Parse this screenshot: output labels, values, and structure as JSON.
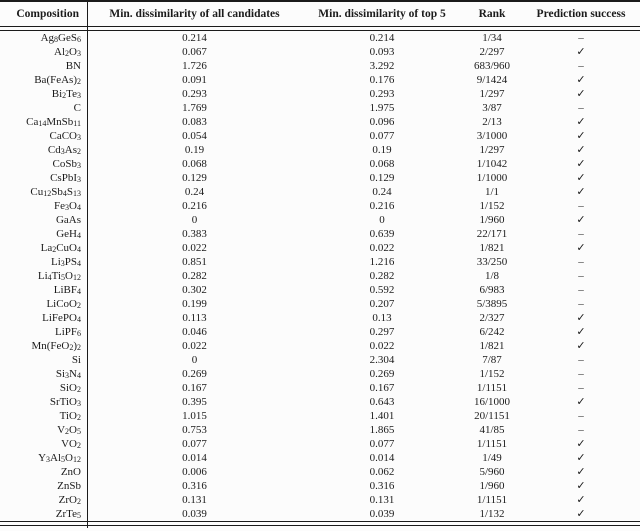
{
  "table": {
    "headers": [
      "Composition",
      "Min. dissimilarity of all candidates",
      "Min. dissimilarity of top 5",
      "Rank",
      "Prediction success"
    ],
    "success_glyphs": {
      "yes": "✓",
      "no": "–"
    },
    "rows": [
      {
        "composition": "Ag_{8}GeS_{6}",
        "min_all": "0.214",
        "min_top5": "0.214",
        "rank": "1/34",
        "success": "–"
      },
      {
        "composition": "Al_{2}O_{3}",
        "min_all": "0.067",
        "min_top5": "0.093",
        "rank": "2/297",
        "success": "✓"
      },
      {
        "composition": "BN",
        "min_all": "1.726",
        "min_top5": "3.292",
        "rank": "683/960",
        "success": "–"
      },
      {
        "composition": "Ba(FeAs)_{2}",
        "min_all": "0.091",
        "min_top5": "0.176",
        "rank": "9/1424",
        "success": "✓"
      },
      {
        "composition": "Bi_{2}Te_{3}",
        "min_all": "0.293",
        "min_top5": "0.293",
        "rank": "1/297",
        "success": "✓"
      },
      {
        "composition": "C",
        "min_all": "1.769",
        "min_top5": "1.975",
        "rank": "3/87",
        "success": "–"
      },
      {
        "composition": "Ca_{14}MnSb_{11}",
        "min_all": "0.083",
        "min_top5": "0.096",
        "rank": "2/13",
        "success": "✓"
      },
      {
        "composition": "CaCO_{3}",
        "min_all": "0.054",
        "min_top5": "0.077",
        "rank": "3/1000",
        "success": "✓"
      },
      {
        "composition": "Cd_{3}As_{2}",
        "min_all": "0.19",
        "min_top5": "0.19",
        "rank": "1/297",
        "success": "✓"
      },
      {
        "composition": "CoSb_{3}",
        "min_all": "0.068",
        "min_top5": "0.068",
        "rank": "1/1042",
        "success": "✓"
      },
      {
        "composition": "CsPbI_{3}",
        "min_all": "0.129",
        "min_top5": "0.129",
        "rank": "1/1000",
        "success": "✓"
      },
      {
        "composition": "Cu_{12}Sb_{4}S_{13}",
        "min_all": "0.24",
        "min_top5": "0.24",
        "rank": "1/1",
        "success": "✓"
      },
      {
        "composition": "Fe_{3}O_{4}",
        "min_all": "0.216",
        "min_top5": "0.216",
        "rank": "1/152",
        "success": "–"
      },
      {
        "composition": "GaAs",
        "min_all": "0",
        "min_top5": "0",
        "rank": "1/960",
        "success": "✓"
      },
      {
        "composition": "GeH_{4}",
        "min_all": "0.383",
        "min_top5": "0.639",
        "rank": "22/171",
        "success": "–"
      },
      {
        "composition": "La_{2}CuO_{4}",
        "min_all": "0.022",
        "min_top5": "0.022",
        "rank": "1/821",
        "success": "✓"
      },
      {
        "composition": "Li_{3}PS_{4}",
        "min_all": "0.851",
        "min_top5": "1.216",
        "rank": "33/250",
        "success": "–"
      },
      {
        "composition": "Li_{4}Ti_{5}O_{12}",
        "min_all": "0.282",
        "min_top5": "0.282",
        "rank": "1/8",
        "success": "–"
      },
      {
        "composition": "LiBF_{4}",
        "min_all": "0.302",
        "min_top5": "0.592",
        "rank": "6/983",
        "success": "–"
      },
      {
        "composition": "LiCoO_{2}",
        "min_all": "0.199",
        "min_top5": "0.207",
        "rank": "5/3895",
        "success": "–"
      },
      {
        "composition": "LiFePO_{4}",
        "min_all": "0.113",
        "min_top5": "0.13",
        "rank": "2/327",
        "success": "✓"
      },
      {
        "composition": "LiPF_{6}",
        "min_all": "0.046",
        "min_top5": "0.297",
        "rank": "6/242",
        "success": "✓"
      },
      {
        "composition": "Mn(FeO_{2})_{2}",
        "min_all": "0.022",
        "min_top5": "0.022",
        "rank": "1/821",
        "success": "✓"
      },
      {
        "composition": "Si",
        "min_all": "0",
        "min_top5": "2.304",
        "rank": "7/87",
        "success": "–"
      },
      {
        "composition": "Si_{3}N_{4}",
        "min_all": "0.269",
        "min_top5": "0.269",
        "rank": "1/152",
        "success": "–"
      },
      {
        "composition": "SiO_{2}",
        "min_all": "0.167",
        "min_top5": "0.167",
        "rank": "1/1151",
        "success": "–"
      },
      {
        "composition": "SrTiO_{3}",
        "min_all": "0.395",
        "min_top5": "0.643",
        "rank": "16/1000",
        "success": "✓"
      },
      {
        "composition": "TiO_{2}",
        "min_all": "1.015",
        "min_top5": "1.401",
        "rank": "20/1151",
        "success": "–"
      },
      {
        "composition": "V_{2}O_{5}",
        "min_all": "0.753",
        "min_top5": "1.865",
        "rank": "41/85",
        "success": "–"
      },
      {
        "composition": "VO_{2}",
        "min_all": "0.077",
        "min_top5": "0.077",
        "rank": "1/1151",
        "success": "✓"
      },
      {
        "composition": "Y_{3}Al_{5}O_{12}",
        "min_all": "0.014",
        "min_top5": "0.014",
        "rank": "1/49",
        "success": "✓"
      },
      {
        "composition": "ZnO",
        "min_all": "0.006",
        "min_top5": "0.062",
        "rank": "5/960",
        "success": "✓"
      },
      {
        "composition": "ZnSb",
        "min_all": "0.316",
        "min_top5": "0.316",
        "rank": "1/960",
        "success": "✓"
      },
      {
        "composition": "ZrO_{2}",
        "min_all": "0.131",
        "min_top5": "0.131",
        "rank": "1/1151",
        "success": "✓"
      },
      {
        "composition": "ZrTe_{5}",
        "min_all": "0.039",
        "min_top5": "0.039",
        "rank": "1/132",
        "success": "✓"
      }
    ]
  }
}
